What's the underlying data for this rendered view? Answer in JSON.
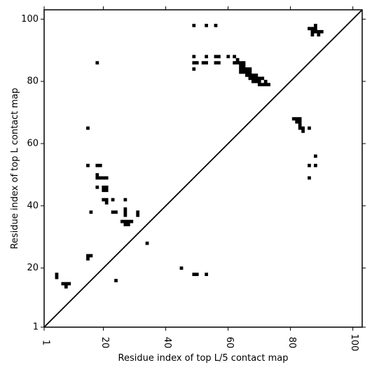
{
  "chart_data": {
    "type": "scatter",
    "title": "",
    "xlabel": "Residue index of top L/5 contact map",
    "ylabel": "Residue index of top L contact map",
    "xlim": [
      1,
      103
    ],
    "ylim": [
      1,
      103
    ],
    "x_ticks": [
      1,
      20,
      40,
      60,
      80,
      100
    ],
    "y_ticks": [
      1,
      20,
      40,
      60,
      80,
      100
    ],
    "x_tick_labels": [
      "1",
      "20",
      "40",
      "60",
      "80",
      "100"
    ],
    "y_tick_labels": [
      "1",
      "20",
      "40",
      "60",
      "80",
      "100"
    ],
    "grid": false,
    "legend": "none",
    "marker_color": "#000000",
    "diagonal": {
      "from": [
        1,
        1
      ],
      "to": [
        103,
        103
      ]
    },
    "points": [
      [
        18,
        86
      ],
      [
        49,
        98
      ],
      [
        53,
        98
      ],
      [
        56,
        98
      ],
      [
        49,
        88
      ],
      [
        49,
        86
      ],
      [
        49,
        84
      ],
      [
        50,
        86
      ],
      [
        52,
        86
      ],
      [
        53,
        86
      ],
      [
        53,
        88
      ],
      [
        56,
        88
      ],
      [
        57,
        88
      ],
      [
        56,
        86
      ],
      [
        57,
        86
      ],
      [
        60,
        88
      ],
      [
        62,
        88
      ],
      [
        62,
        86
      ],
      [
        63,
        87
      ],
      [
        63,
        86
      ],
      [
        64,
        86
      ],
      [
        65,
        86
      ],
      [
        64,
        85
      ],
      [
        65,
        85
      ],
      [
        64,
        84
      ],
      [
        65,
        84
      ],
      [
        66,
        84
      ],
      [
        67,
        84
      ],
      [
        64,
        83
      ],
      [
        65,
        83
      ],
      [
        66,
        83
      ],
      [
        67,
        83
      ],
      [
        66,
        82
      ],
      [
        67,
        82
      ],
      [
        68,
        82
      ],
      [
        69,
        82
      ],
      [
        67,
        81
      ],
      [
        68,
        81
      ],
      [
        69,
        81
      ],
      [
        70,
        81
      ],
      [
        71,
        81
      ],
      [
        68,
        80
      ],
      [
        69,
        80
      ],
      [
        70,
        80
      ],
      [
        72,
        80
      ],
      [
        70,
        79
      ],
      [
        71,
        79
      ],
      [
        72,
        79
      ],
      [
        73,
        79
      ],
      [
        86,
        97
      ],
      [
        87,
        97
      ],
      [
        88,
        97
      ],
      [
        88,
        98
      ],
      [
        87,
        96
      ],
      [
        88,
        96
      ],
      [
        89,
        96
      ],
      [
        90,
        96
      ],
      [
        87,
        95
      ],
      [
        89,
        95
      ],
      [
        81,
        68
      ],
      [
        82,
        68
      ],
      [
        83,
        68
      ],
      [
        82,
        67
      ],
      [
        83,
        67
      ],
      [
        83,
        66
      ],
      [
        83,
        65
      ],
      [
        84,
        65
      ],
      [
        86,
        65
      ],
      [
        84,
        64
      ],
      [
        15,
        65
      ],
      [
        15,
        53
      ],
      [
        18,
        53
      ],
      [
        19,
        53
      ],
      [
        18,
        50
      ],
      [
        18,
        49
      ],
      [
        19,
        49
      ],
      [
        20,
        49
      ],
      [
        21,
        49
      ],
      [
        18,
        46
      ],
      [
        20,
        46
      ],
      [
        21,
        46
      ],
      [
        20,
        45
      ],
      [
        21,
        45
      ],
      [
        20,
        42
      ],
      [
        21,
        42
      ],
      [
        23,
        42
      ],
      [
        27,
        42
      ],
      [
        21,
        41
      ],
      [
        16,
        38
      ],
      [
        23,
        38
      ],
      [
        24,
        38
      ],
      [
        27,
        39
      ],
      [
        27,
        38
      ],
      [
        27,
        37
      ],
      [
        31,
        38
      ],
      [
        31,
        37
      ],
      [
        26,
        35
      ],
      [
        27,
        35
      ],
      [
        28,
        35
      ],
      [
        29,
        35
      ],
      [
        27,
        34
      ],
      [
        28,
        34
      ],
      [
        34,
        28
      ],
      [
        15,
        24
      ],
      [
        16,
        24
      ],
      [
        15,
        23
      ],
      [
        45,
        20
      ],
      [
        49,
        18
      ],
      [
        50,
        18
      ],
      [
        53,
        18
      ],
      [
        5,
        18
      ],
      [
        5,
        17
      ],
      [
        7,
        15
      ],
      [
        8,
        15
      ],
      [
        9,
        15
      ],
      [
        8,
        14
      ],
      [
        24,
        16
      ],
      [
        88,
        56
      ],
      [
        86,
        53
      ],
      [
        88,
        53
      ],
      [
        86,
        49
      ]
    ]
  }
}
